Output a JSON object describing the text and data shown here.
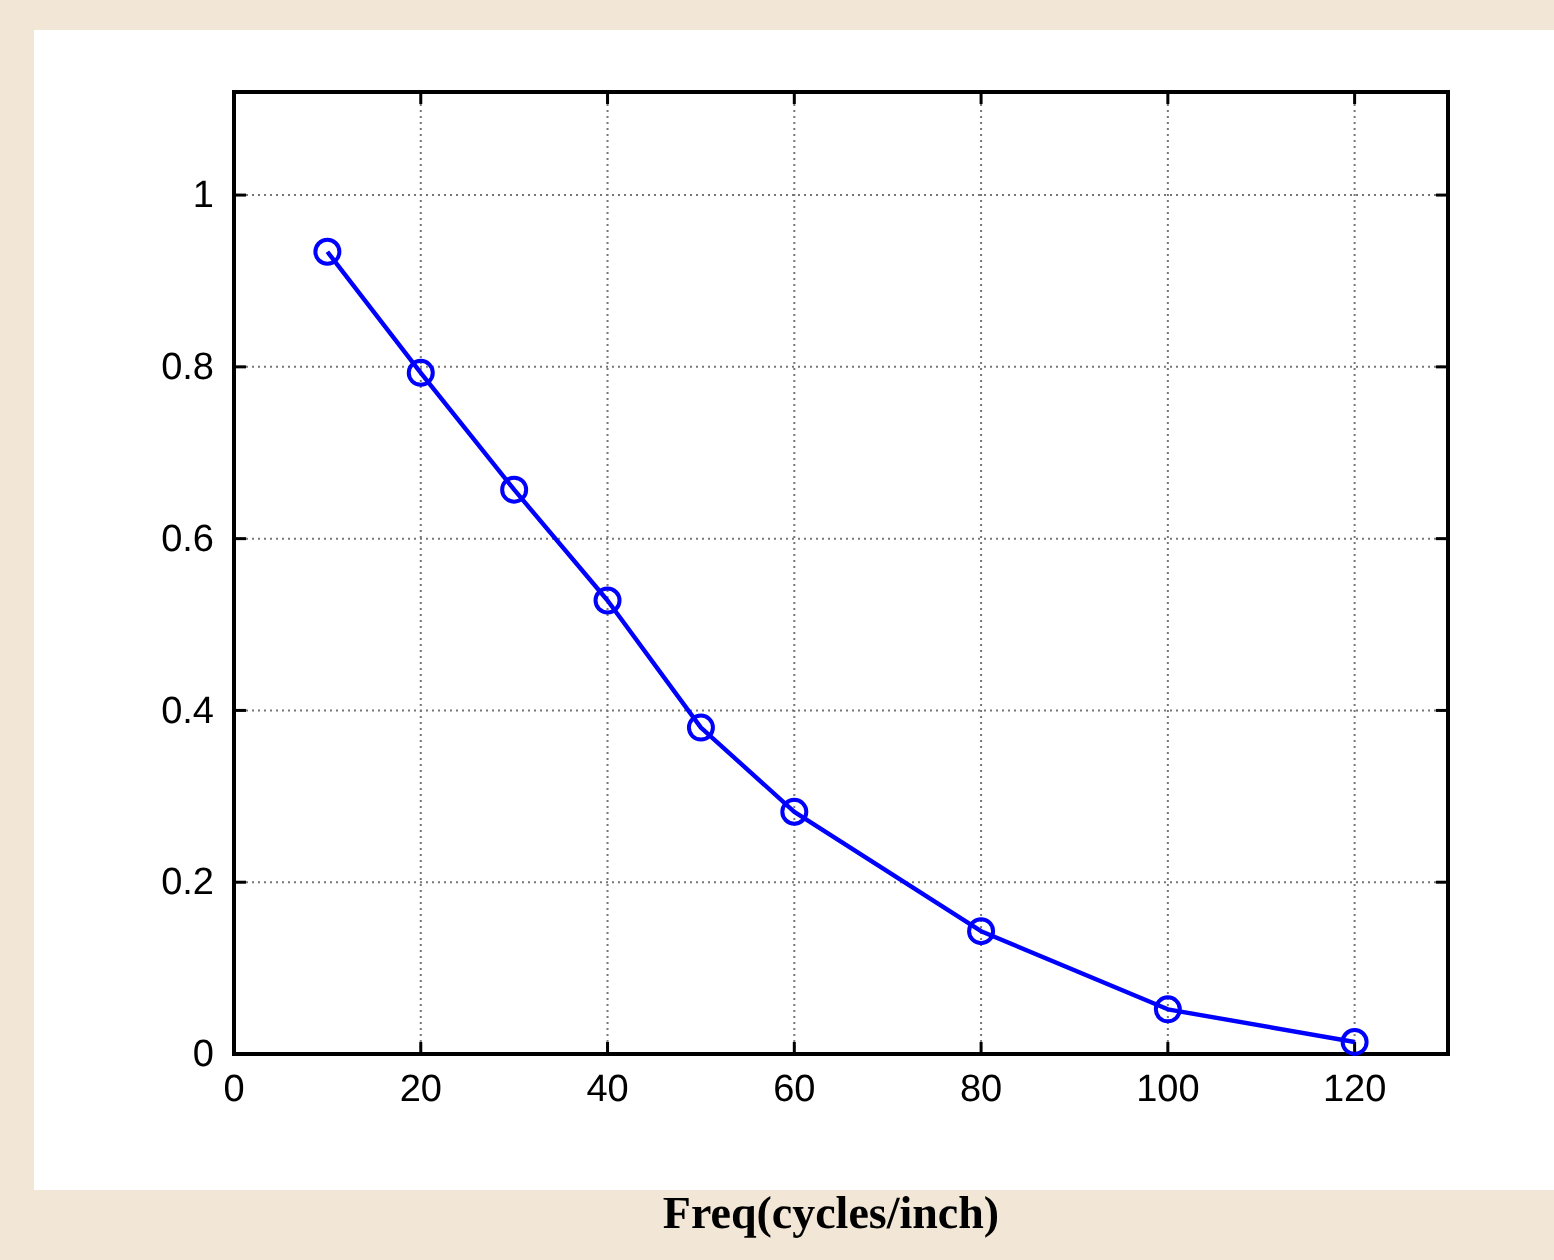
{
  "chart_data": {
    "type": "line",
    "xlabel": "Freq(cycles/inch)",
    "x": [
      10,
      20,
      30,
      40,
      50,
      60,
      80,
      100,
      120
    ],
    "series": [
      {
        "color": "#0000ff",
        "values": [
          0.934,
          0.793,
          0.657,
          0.528,
          0.38,
          0.282,
          0.143,
          0.052,
          0.014
        ]
      }
    ],
    "xlim": [
      0,
      130
    ],
    "xticks": [
      0,
      20,
      40,
      60,
      80,
      100,
      120
    ],
    "ylim": [
      0,
      1.12
    ],
    "yticks": [
      0,
      0.2,
      0.4,
      0.6,
      0.8,
      1
    ],
    "grid": true,
    "marker": "circle",
    "line_style": "solid"
  }
}
